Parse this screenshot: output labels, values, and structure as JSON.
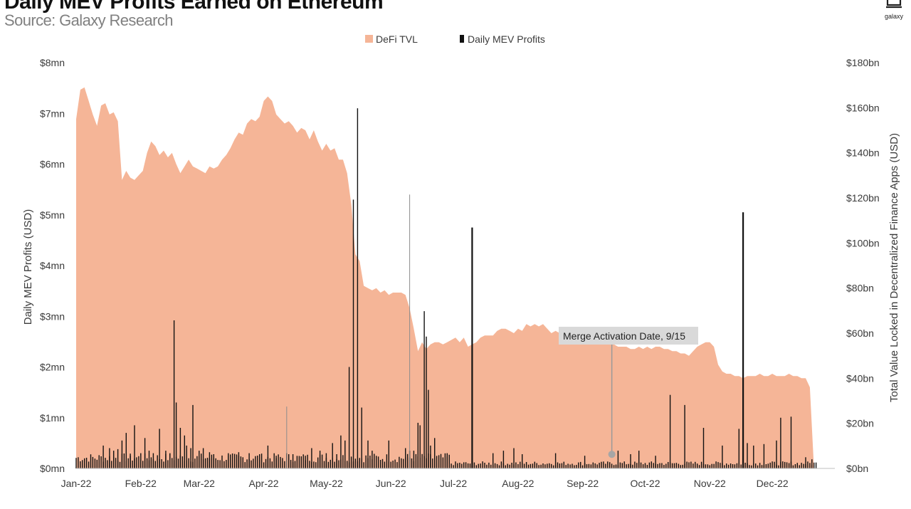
{
  "header": {
    "title": "Daily MEV Profits Earned on Ethereum",
    "subtitle": "Source: Galaxy Research",
    "logo_text": "galaxy"
  },
  "colors": {
    "tvl_fill": "#f5b597",
    "mev_bar": "#111111",
    "annotation_bg": "#d9d9d9",
    "marker": "#a6a6a6",
    "axis_line": "#bfbfbf"
  },
  "chart_data": {
    "type": "area",
    "title": "Daily MEV Profits Earned on Ethereum",
    "subtitle": "Source: Galaxy Research",
    "ylabel_left": "Daily MEV Profits (USD)",
    "ylabel_right": "Total Value Locked in Decentralized Finance Apps (USD)",
    "y_left_ticks": [
      "$0mn",
      "$1mn",
      "$2mn",
      "$3mn",
      "$4mn",
      "$5mn",
      "$6mn",
      "$7mn",
      "$8mn"
    ],
    "y_right_ticks": [
      "$0bn",
      "$20bn",
      "$40bn",
      "$60bn",
      "$80bn",
      "$100bn",
      "$120bn",
      "$140bn",
      "$160bn",
      "$180bn"
    ],
    "ylim_left_mn": [
      0,
      8
    ],
    "ylim_right_bn": [
      0,
      180
    ],
    "x_ticks": [
      "Jan-22",
      "Feb-22",
      "Mar-22",
      "Apr-22",
      "May-22",
      "Jun-22",
      "Jul-22",
      "Aug-22",
      "Sep-22",
      "Oct-22",
      "Nov-22",
      "Dec-22"
    ],
    "x_tick_days": [
      0,
      31,
      59,
      90,
      120,
      151,
      181,
      212,
      243,
      273,
      304,
      334
    ],
    "xlim_days": [
      0,
      364
    ],
    "legend": {
      "position": "top-center",
      "items": [
        {
          "name": "DeFi TVL",
          "color": "#f5b597"
        },
        {
          "name": "Daily MEV Profits",
          "color": "#111111"
        }
      ]
    },
    "series": [
      {
        "name": "DeFi TVL",
        "kind": "area",
        "axis": "right",
        "points": [
          [
            0,
            155
          ],
          [
            2,
            168
          ],
          [
            4,
            169
          ],
          [
            6,
            163
          ],
          [
            8,
            157
          ],
          [
            10,
            152
          ],
          [
            12,
            161
          ],
          [
            14,
            162
          ],
          [
            16,
            157
          ],
          [
            18,
            158
          ],
          [
            20,
            154
          ],
          [
            22,
            128
          ],
          [
            24,
            132
          ],
          [
            26,
            129
          ],
          [
            28,
            128
          ],
          [
            30,
            130
          ],
          [
            32,
            132
          ],
          [
            34,
            140
          ],
          [
            36,
            145
          ],
          [
            38,
            143
          ],
          [
            40,
            139
          ],
          [
            42,
            141
          ],
          [
            44,
            138
          ],
          [
            46,
            140
          ],
          [
            48,
            135
          ],
          [
            50,
            131
          ],
          [
            52,
            134
          ],
          [
            54,
            137
          ],
          [
            56,
            134
          ],
          [
            58,
            133
          ],
          [
            60,
            132
          ],
          [
            62,
            131
          ],
          [
            64,
            134
          ],
          [
            66,
            133
          ],
          [
            68,
            134
          ],
          [
            70,
            137
          ],
          [
            72,
            139
          ],
          [
            74,
            142
          ],
          [
            76,
            146
          ],
          [
            78,
            149
          ],
          [
            80,
            148
          ],
          [
            82,
            153
          ],
          [
            84,
            155
          ],
          [
            86,
            154
          ],
          [
            88,
            156
          ],
          [
            90,
            163
          ],
          [
            92,
            165
          ],
          [
            94,
            163
          ],
          [
            96,
            157
          ],
          [
            98,
            155
          ],
          [
            100,
            153
          ],
          [
            102,
            154
          ],
          [
            104,
            152
          ],
          [
            106,
            149
          ],
          [
            108,
            151
          ],
          [
            110,
            150
          ],
          [
            112,
            146
          ],
          [
            114,
            150
          ],
          [
            116,
            145
          ],
          [
            118,
            141
          ],
          [
            120,
            144
          ],
          [
            122,
            141
          ],
          [
            124,
            142
          ],
          [
            126,
            137
          ],
          [
            128,
            137
          ],
          [
            130,
            131
          ],
          [
            132,
            117
          ],
          [
            134,
            95
          ],
          [
            136,
            92
          ],
          [
            138,
            81
          ],
          [
            140,
            80
          ],
          [
            142,
            79
          ],
          [
            144,
            80
          ],
          [
            146,
            78
          ],
          [
            148,
            79
          ],
          [
            150,
            77
          ],
          [
            152,
            78
          ],
          [
            154,
            78
          ],
          [
            156,
            78
          ],
          [
            158,
            77
          ],
          [
            160,
            71
          ],
          [
            162,
            62
          ],
          [
            164,
            52
          ],
          [
            166,
            56
          ],
          [
            168,
            53
          ],
          [
            170,
            55
          ],
          [
            172,
            56
          ],
          [
            174,
            56
          ],
          [
            176,
            55
          ],
          [
            178,
            56
          ],
          [
            180,
            57
          ],
          [
            182,
            58
          ],
          [
            184,
            56
          ],
          [
            186,
            58
          ],
          [
            188,
            54
          ],
          [
            190,
            55
          ],
          [
            192,
            56
          ],
          [
            194,
            58
          ],
          [
            196,
            59
          ],
          [
            198,
            59
          ],
          [
            200,
            59
          ],
          [
            202,
            61
          ],
          [
            204,
            62
          ],
          [
            206,
            62
          ],
          [
            208,
            61
          ],
          [
            210,
            60
          ],
          [
            212,
            62
          ],
          [
            214,
            61
          ],
          [
            216,
            64
          ],
          [
            218,
            63
          ],
          [
            220,
            64
          ],
          [
            222,
            63
          ],
          [
            224,
            64
          ],
          [
            226,
            62
          ],
          [
            228,
            60
          ],
          [
            230,
            61
          ],
          [
            232,
            60
          ],
          [
            234,
            59
          ],
          [
            236,
            58
          ],
          [
            238,
            60
          ],
          [
            240,
            57
          ],
          [
            242,
            57
          ],
          [
            244,
            58
          ],
          [
            246,
            58
          ],
          [
            248,
            57
          ],
          [
            250,
            56
          ],
          [
            252,
            57
          ],
          [
            254,
            56
          ],
          [
            256,
            55
          ],
          [
            258,
            55
          ],
          [
            260,
            54
          ],
          [
            262,
            54
          ],
          [
            264,
            54
          ],
          [
            266,
            53
          ],
          [
            268,
            53
          ],
          [
            270,
            54
          ],
          [
            272,
            53
          ],
          [
            274,
            54
          ],
          [
            276,
            53
          ],
          [
            278,
            54
          ],
          [
            280,
            54
          ],
          [
            282,
            53
          ],
          [
            284,
            53
          ],
          [
            286,
            52
          ],
          [
            288,
            52
          ],
          [
            290,
            51
          ],
          [
            292,
            51
          ],
          [
            294,
            50
          ],
          [
            296,
            52
          ],
          [
            298,
            54
          ],
          [
            300,
            55
          ],
          [
            302,
            56
          ],
          [
            304,
            56
          ],
          [
            306,
            54
          ],
          [
            308,
            46
          ],
          [
            310,
            43
          ],
          [
            312,
            42
          ],
          [
            314,
            42
          ],
          [
            316,
            41
          ],
          [
            318,
            41
          ],
          [
            320,
            40
          ],
          [
            322,
            41
          ],
          [
            324,
            41
          ],
          [
            326,
            41
          ],
          [
            328,
            42
          ],
          [
            330,
            41
          ],
          [
            332,
            41
          ],
          [
            334,
            42
          ],
          [
            336,
            41
          ],
          [
            338,
            41
          ],
          [
            340,
            41
          ],
          [
            342,
            42
          ],
          [
            344,
            41
          ],
          [
            346,
            41
          ],
          [
            348,
            40
          ],
          [
            350,
            40
          ],
          [
            352,
            36
          ],
          [
            354,
            0
          ],
          [
            0,
            0
          ]
        ]
      },
      {
        "name": "Daily MEV Profits",
        "kind": "bar",
        "axis": "left",
        "spikes": [
          [
            13,
            0.45
          ],
          [
            16,
            0.4
          ],
          [
            18,
            0.35
          ],
          [
            20,
            0.38
          ],
          [
            22,
            0.55
          ],
          [
            24,
            0.7
          ],
          [
            26,
            0.25
          ],
          [
            28,
            0.85
          ],
          [
            31,
            0.3
          ],
          [
            33,
            0.6
          ],
          [
            35,
            0.35
          ],
          [
            37,
            0.3
          ],
          [
            40,
            0.78
          ],
          [
            43,
            0.35
          ],
          [
            45,
            0.3
          ],
          [
            47,
            2.92
          ],
          [
            48,
            1.3
          ],
          [
            50,
            0.8
          ],
          [
            52,
            0.65
          ],
          [
            53,
            0.45
          ],
          [
            55,
            0.4
          ],
          [
            56,
            1.25
          ],
          [
            59,
            0.35
          ],
          [
            61,
            0.4
          ],
          [
            64,
            0.32
          ],
          [
            66,
            0.28
          ],
          [
            73,
            0.3
          ],
          [
            78,
            0.32
          ],
          [
            83,
            0.3
          ],
          [
            88,
            0.28
          ],
          [
            92,
            0.45
          ],
          [
            96,
            0.25
          ],
          [
            101,
            0.3
          ],
          [
            104,
            0.28
          ],
          [
            110,
            0.25
          ],
          [
            113,
            0.4
          ],
          [
            117,
            0.35
          ],
          [
            120,
            0.3
          ],
          [
            123,
            0.5
          ],
          [
            125,
            0.28
          ],
          [
            127,
            0.65
          ],
          [
            129,
            0.55
          ],
          [
            131,
            2.0
          ],
          [
            133,
            5.3
          ],
          [
            135,
            7.1
          ],
          [
            137,
            1.2
          ],
          [
            140,
            0.55
          ],
          [
            142,
            0.35
          ],
          [
            150,
            0.55
          ],
          [
            158,
            0.4
          ],
          [
            160,
            0.35
          ],
          [
            162,
            0.35
          ],
          [
            164,
            0.9
          ],
          [
            165,
            0.85
          ],
          [
            167,
            3.1
          ],
          [
            168,
            2.6
          ],
          [
            169,
            1.55
          ],
          [
            170,
            0.45
          ],
          [
            172,
            0.6
          ],
          [
            178,
            0.3
          ],
          [
            190,
            0.35
          ],
          [
            200,
            0.3
          ],
          [
            205,
            0.35
          ],
          [
            210,
            0.4
          ],
          [
            214,
            0.28
          ],
          [
            230,
            0.3
          ],
          [
            244,
            0.25
          ],
          [
            260,
            0.35
          ],
          [
            266,
            0.28
          ],
          [
            270,
            0.35
          ],
          [
            278,
            0.25
          ],
          [
            285,
            1.45
          ],
          [
            292,
            1.25
          ],
          [
            301,
            0.8
          ],
          [
            310,
            0.45
          ],
          [
            318,
            0.78
          ],
          [
            320,
            0.6
          ],
          [
            322,
            0.5
          ],
          [
            325,
            0.45
          ],
          [
            330,
            0.48
          ],
          [
            336,
            0.55
          ],
          [
            338,
            1.0
          ],
          [
            343,
            1.02
          ],
          [
            350,
            0.22
          ],
          [
            353,
            0.18
          ]
        ],
        "tall_bars": [
          [
            190,
            4.75
          ],
          [
            320,
            5.05
          ]
        ],
        "thin_bars": [
          [
            101,
            1.22
          ],
          [
            160,
            5.4
          ]
        ]
      }
    ],
    "annotations": [
      {
        "text": "Merge Activation Date, 9/15",
        "x_day": 257,
        "y_mn": 0.25
      }
    ]
  }
}
